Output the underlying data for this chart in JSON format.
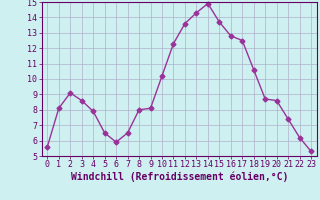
{
  "x": [
    0,
    1,
    2,
    3,
    4,
    5,
    6,
    7,
    8,
    9,
    10,
    11,
    12,
    13,
    14,
    15,
    16,
    17,
    18,
    19,
    20,
    21,
    22,
    23
  ],
  "y": [
    5.6,
    8.1,
    9.1,
    8.6,
    7.9,
    6.5,
    5.9,
    6.5,
    8.0,
    8.1,
    10.2,
    12.3,
    13.6,
    14.3,
    14.9,
    13.7,
    12.8,
    12.5,
    10.6,
    8.7,
    8.6,
    7.4,
    6.2,
    5.3
  ],
  "line_color": "#993399",
  "marker": "D",
  "marker_size": 2.5,
  "line_width": 1.0,
  "xlabel": "Windchill (Refroidissement éolien,°C)",
  "xlabel_fontsize": 7.0,
  "ylim": [
    5,
    15
  ],
  "xlim": [
    -0.5,
    23.5
  ],
  "yticks": [
    5,
    6,
    7,
    8,
    9,
    10,
    11,
    12,
    13,
    14,
    15
  ],
  "xticks": [
    0,
    1,
    2,
    3,
    4,
    5,
    6,
    7,
    8,
    9,
    10,
    11,
    12,
    13,
    14,
    15,
    16,
    17,
    18,
    19,
    20,
    21,
    22,
    23
  ],
  "tick_fontsize": 6.0,
  "bg_color": "#cff0f0",
  "grid_color": "#b0b0cc",
  "axes_color": "#660066",
  "spine_color": "#660066"
}
